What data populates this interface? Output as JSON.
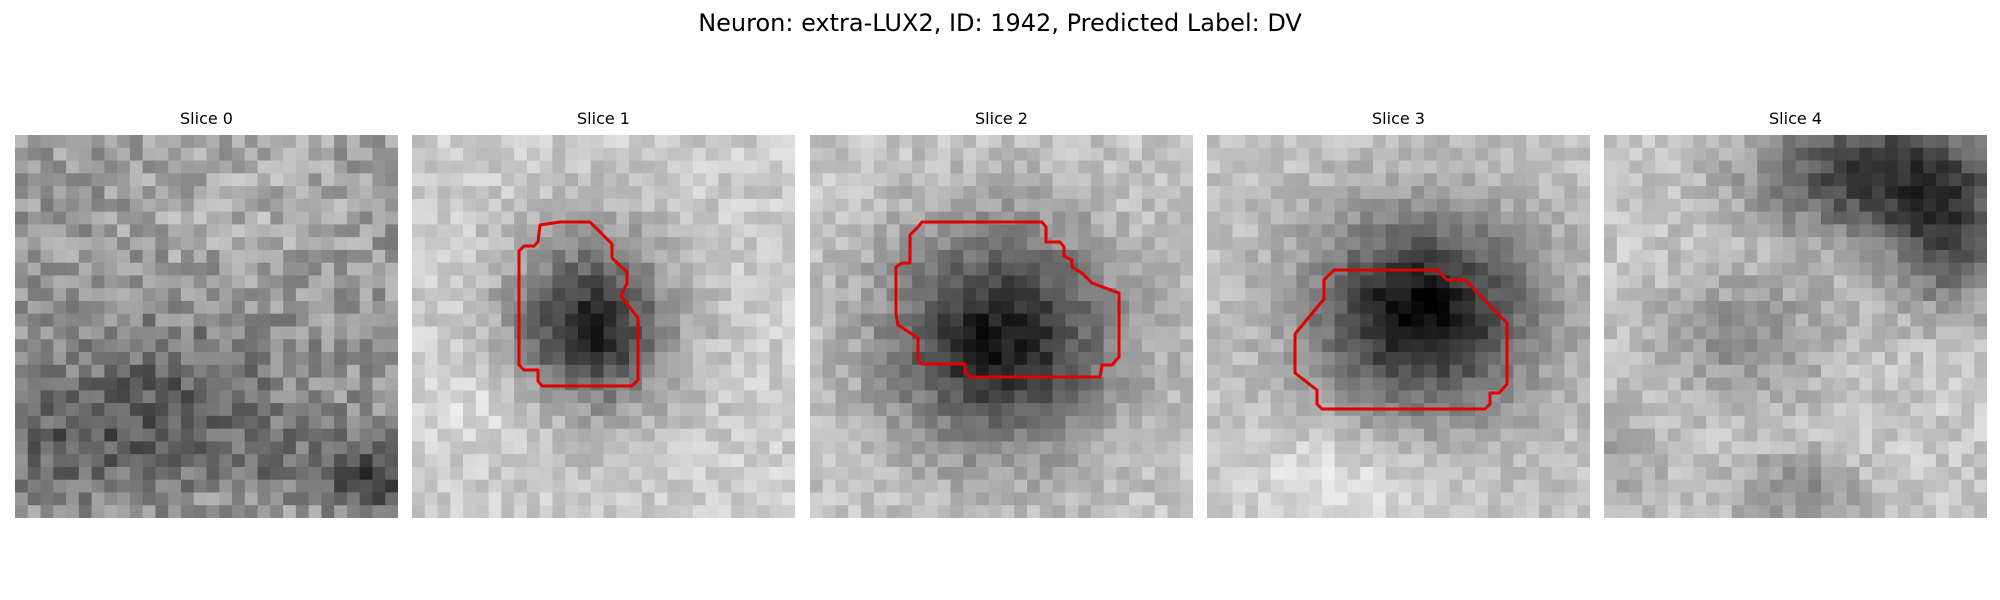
{
  "figure": {
    "title": "Neuron: extra-LUX2, ID: 1942, Predicted Label: DV",
    "contour_color": "#e00000",
    "slices": [
      {
        "title": "Slice 0"
      },
      {
        "title": "Slice 1"
      },
      {
        "title": "Slice 2"
      },
      {
        "title": "Slice 3"
      },
      {
        "title": "Slice 4"
      }
    ]
  }
}
